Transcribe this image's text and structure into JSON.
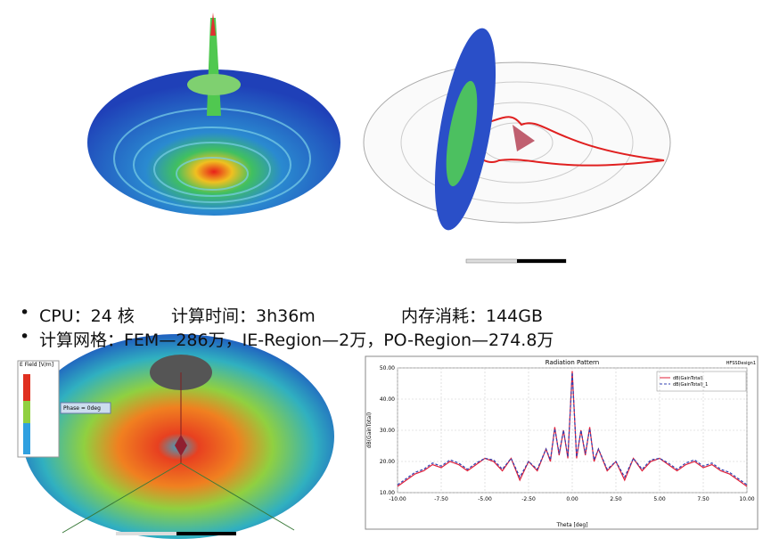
{
  "specs": {
    "line1": [
      "CPU：24 核",
      "计算时间：3h36m",
      "内存消耗：144GB"
    ],
    "line2": "计算网格：FEM—286万，IE-Region—2万，PO-Region—274.8万"
  },
  "field_plot": {
    "legend_title": "E Field [V/m]",
    "phase": "Phase = 0deg"
  },
  "chart_data": {
    "type": "line",
    "title": "Radiation Pattern",
    "design": "HFSSDesign1",
    "x_label": "Theta [deg]",
    "y_label": "dB(GainTotal)",
    "xlim": [
      -10,
      10
    ],
    "ylim": [
      10,
      50
    ],
    "xticks": [
      {
        "value": -10,
        "label": "-10.00"
      },
      {
        "value": -7.5,
        "label": "-7.50"
      },
      {
        "value": -5,
        "label": "-5.00"
      },
      {
        "value": -2.5,
        "label": "-2.50"
      },
      {
        "value": 0,
        "label": "0.00"
      },
      {
        "value": 2.5,
        "label": "2.50"
      },
      {
        "value": 5,
        "label": "5.00"
      },
      {
        "value": 7.5,
        "label": "7.50"
      },
      {
        "value": 10,
        "label": "10.00"
      }
    ],
    "yticks": [
      {
        "value": 10,
        "label": "10.00"
      },
      {
        "value": 20,
        "label": "20.00"
      },
      {
        "value": 30,
        "label": "30.00"
      },
      {
        "value": 40,
        "label": "40.00"
      },
      {
        "value": 50,
        "label": "50.00"
      }
    ],
    "grid": true,
    "x": [
      -10,
      -9.5,
      -9,
      -8.5,
      -8,
      -7.5,
      -7,
      -6.5,
      -6,
      -5.5,
      -5,
      -4.5,
      -4,
      -3.5,
      -3,
      -2.5,
      -2,
      -1.5,
      -1.25,
      -1,
      -0.75,
      -0.5,
      -0.25,
      0,
      0.25,
      0.5,
      0.75,
      1,
      1.25,
      1.5,
      2,
      2.5,
      3,
      3.5,
      4,
      4.5,
      5,
      5.5,
      6,
      6.5,
      7,
      7.5,
      8,
      8.5,
      9,
      9.5,
      10
    ],
    "series": [
      {
        "name": "dB(GainTotal)",
        "color": "#e0203a",
        "dashed": false,
        "values": [
          12,
          14,
          16,
          17,
          19,
          18,
          20,
          19,
          17,
          19,
          21,
          20,
          17,
          21,
          14,
          20,
          17,
          24,
          20,
          31,
          22,
          30,
          21,
          49,
          21,
          30,
          22,
          31,
          20,
          24,
          17,
          20,
          14,
          21,
          17,
          20,
          21,
          19,
          17,
          19,
          20,
          18,
          19,
          17,
          16,
          14,
          12
        ]
      },
      {
        "name": "dB(GainTotal)_1",
        "color": "#3040b0",
        "dashed": true,
        "values": [
          12.5,
          14.5,
          16.5,
          17.5,
          19.5,
          18.5,
          20.5,
          19.5,
          17.5,
          19.5,
          21,
          20.5,
          17.5,
          21,
          15,
          20,
          17.5,
          24,
          20.5,
          30.5,
          22.5,
          30,
          21.5,
          48.5,
          21.5,
          30,
          22.5,
          30.5,
          20.5,
          24,
          17.5,
          20,
          15,
          21,
          17.5,
          20.5,
          21,
          19.5,
          17.5,
          19.5,
          20.5,
          18.5,
          19.5,
          17.5,
          16.5,
          14.5,
          12.5
        ]
      }
    ]
  }
}
